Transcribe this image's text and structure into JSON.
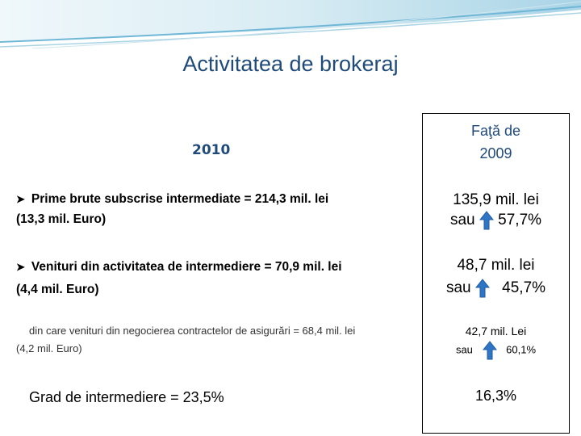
{
  "title": "Activitatea de brokeraj",
  "year_label": "2010",
  "comparison_header_line1": "Faţă de",
  "comparison_header_line2": "2009",
  "items": [
    {
      "line1": "Prime brute subscrise intermediate =   214,3 mil. lei",
      "line2": "(13,3 mil. Euro)",
      "cmp_value": "135,9 mil. lei",
      "cmp_or": "sau",
      "cmp_pct": "57,7%"
    },
    {
      "line1": "Venituri din activitatea de intermediere = 70,9 mil. lei",
      "line2": "(4,4 mil. Euro)",
      "cmp_value": "48,7 mil. lei",
      "cmp_or": "sau",
      "cmp_pct": "45,7%"
    },
    {
      "line1": "din care venituri din negocierea contractelor de asigurări = 68,4 mil. lei",
      "line2": "(4,2 mil. Euro)",
      "cmp_value": "42,7 mil. Lei",
      "cmp_or": "sau",
      "cmp_pct": "60,1%"
    },
    {
      "line1": "Grad de intermediere = 23,5%",
      "cmp_value": "16,3%"
    }
  ],
  "colors": {
    "title": "#1f4a7a",
    "arrow": "#2e75c6",
    "deco": "#6fb7d6"
  },
  "icons": {
    "bullet": "arrowhead-bullet-icon",
    "increase": "arrow-up-icon"
  }
}
